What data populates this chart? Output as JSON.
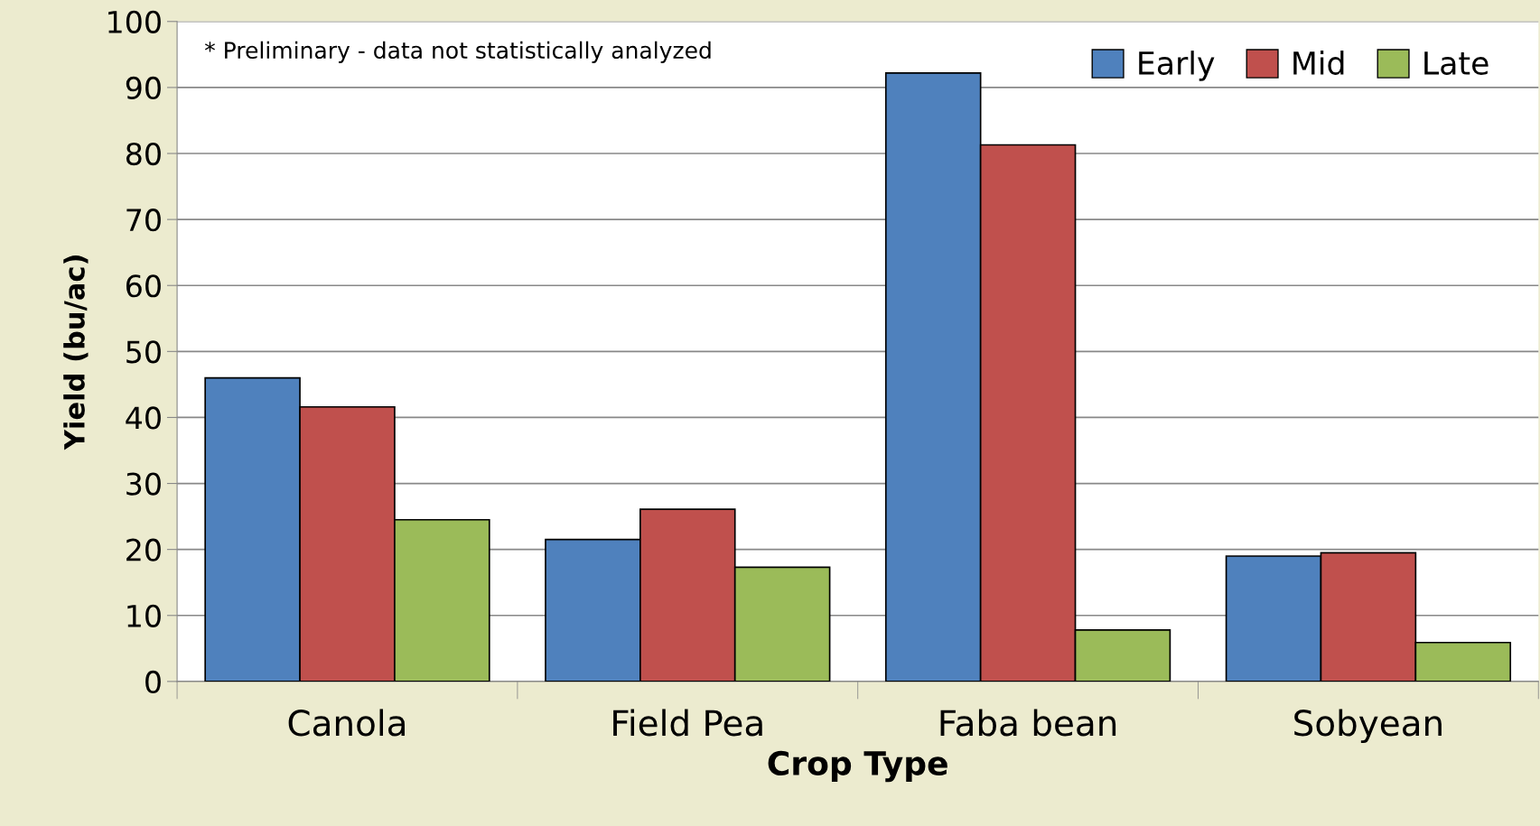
{
  "chart_data": {
    "type": "bar",
    "xlabel": "Crop Type",
    "ylabel": "Yield (bu/ac)",
    "categories": [
      "Canola",
      "Field Pea",
      "Faba bean",
      "Sobyean"
    ],
    "series": [
      {
        "name": "Early",
        "color": "#4f81bd",
        "values": [
          46,
          21.5,
          92.2,
          19
        ]
      },
      {
        "name": "Mid",
        "color": "#c0504d",
        "values": [
          41.6,
          26.1,
          81.3,
          19.5
        ]
      },
      {
        "name": "Late",
        "color": "#9bbb59",
        "values": [
          24.5,
          17.3,
          7.8,
          5.9
        ]
      }
    ],
    "ylim": [
      0,
      100
    ],
    "yticks": [
      0,
      10,
      20,
      30,
      40,
      50,
      60,
      70,
      80,
      90,
      100
    ],
    "grid": "y",
    "legend": "top right",
    "annotations": [
      "* Preliminary - data not statistically analyzed"
    ]
  }
}
